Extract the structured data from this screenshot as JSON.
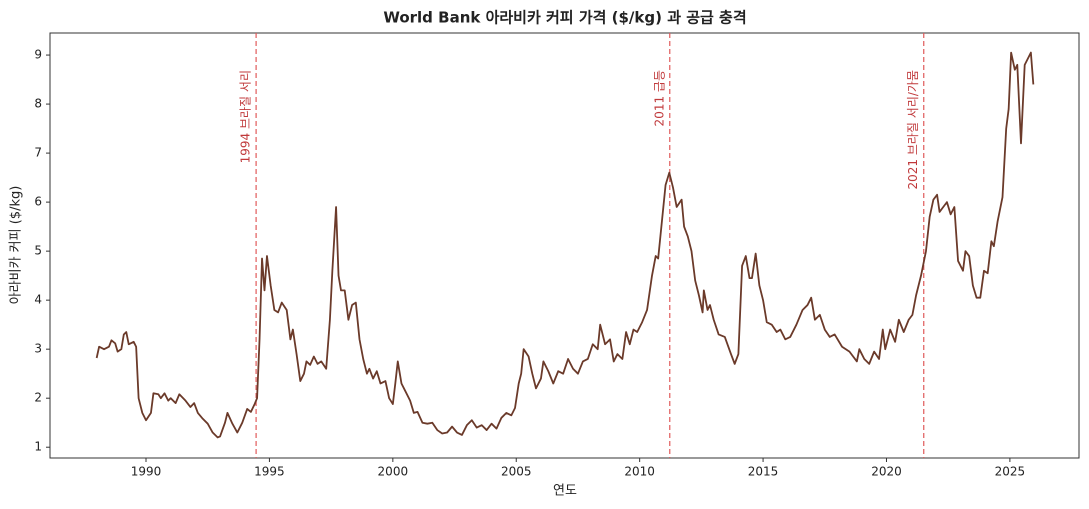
{
  "chart_data": {
    "type": "line",
    "title": "World Bank 아라비카 커피 가격 ($/kg) 과 공급 충격",
    "x_label": "연도",
    "y_label": "아라비카 커피 ($/kg)",
    "xlim": [
      1986.11,
      2027.8
    ],
    "ylim": [
      0.78,
      9.45
    ],
    "xticks": [
      1990,
      1995,
      2000,
      2005,
      2010,
      2015,
      2020,
      2025
    ],
    "yticks": [
      1,
      2,
      3,
      4,
      5,
      6,
      7,
      8,
      9
    ],
    "grid": false,
    "annotations": [
      {
        "x": 1994.46,
        "text": "1994 브라질 서리"
      },
      {
        "x": 2011.22,
        "text": "2011 급등"
      },
      {
        "x": 2021.51,
        "text": "2021 브라질 서리/가뭄"
      }
    ],
    "annotation_color": "#e05a5a",
    "series": [
      {
        "name": "아라비카 커피",
        "color": "#6b3a2a",
        "x": [
          1988.0,
          1988.1,
          1988.3,
          1988.5,
          1988.6,
          1988.75,
          1988.85,
          1989.0,
          1989.1,
          1989.2,
          1989.3,
          1989.5,
          1989.6,
          1989.7,
          1989.85,
          1990.0,
          1990.2,
          1990.3,
          1990.5,
          1990.6,
          1990.75,
          1990.9,
          1991.0,
          1991.2,
          1991.35,
          1991.6,
          1991.8,
          1991.95,
          1992.1,
          1992.3,
          1992.5,
          1992.7,
          1992.9,
          1993.0,
          1993.2,
          1993.3,
          1993.5,
          1993.7,
          1993.9,
          1994.1,
          1994.25,
          1994.4,
          1994.5,
          1994.6,
          1994.7,
          1994.8,
          1994.9,
          1995.05,
          1995.2,
          1995.35,
          1995.5,
          1995.7,
          1995.85,
          1995.95,
          1996.1,
          1996.25,
          1996.4,
          1996.5,
          1996.65,
          1996.8,
          1996.95,
          1997.1,
          1997.3,
          1997.45,
          1997.55,
          1997.7,
          1997.8,
          1997.9,
          1998.05,
          1998.2,
          1998.35,
          1998.5,
          1998.65,
          1998.8,
          1998.95,
          1999.05,
          1999.2,
          1999.35,
          1999.5,
          1999.7,
          1999.85,
          2000.0,
          2000.1,
          2000.2,
          2000.35,
          2000.5,
          2000.7,
          2000.85,
          2001.0,
          2001.2,
          2001.4,
          2001.6,
          2001.8,
          2002.0,
          2002.2,
          2002.4,
          2002.6,
          2002.8,
          2003.0,
          2003.2,
          2003.4,
          2003.6,
          2003.8,
          2004.0,
          2004.2,
          2004.4,
          2004.6,
          2004.8,
          2004.95,
          2005.1,
          2005.2,
          2005.3,
          2005.5,
          2005.65,
          2005.8,
          2006.0,
          2006.1,
          2006.3,
          2006.5,
          2006.7,
          2006.9,
          2007.1,
          2007.3,
          2007.5,
          2007.7,
          2007.9,
          2008.1,
          2008.3,
          2008.4,
          2008.6,
          2008.8,
          2008.95,
          2009.1,
          2009.3,
          2009.45,
          2009.6,
          2009.75,
          2009.9,
          2010.1,
          2010.3,
          2010.5,
          2010.65,
          2010.75,
          2010.9,
          2011.05,
          2011.2,
          2011.35,
          2011.5,
          2011.7,
          2011.8,
          2011.95,
          2012.1,
          2012.25,
          2012.4,
          2012.55,
          2012.6,
          2012.75,
          2012.85,
          2013.0,
          2013.2,
          2013.45,
          2013.7,
          2013.85,
          2014.0,
          2014.15,
          2014.3,
          2014.45,
          2014.55,
          2014.7,
          2014.85,
          2015.0,
          2015.15,
          2015.35,
          2015.55,
          2015.7,
          2015.9,
          2016.1,
          2016.35,
          2016.6,
          2016.8,
          2016.95,
          2017.1,
          2017.3,
          2017.5,
          2017.7,
          2017.9,
          2018.2,
          2018.5,
          2018.8,
          2018.9,
          2019.1,
          2019.3,
          2019.5,
          2019.7,
          2019.85,
          2019.95,
          2020.15,
          2020.35,
          2020.5,
          2020.7,
          2020.9,
          2021.05,
          2021.2,
          2021.4,
          2021.6,
          2021.75,
          2021.9,
          2022.05,
          2022.15,
          2022.3,
          2022.45,
          2022.6,
          2022.75,
          2022.9,
          2023.1,
          2023.2,
          2023.35,
          2023.5,
          2023.65,
          2023.8,
          2023.95,
          2024.1,
          2024.25,
          2024.35,
          2024.5,
          2024.7,
          2024.85,
          2024.95,
          2025.05,
          2025.2,
          2025.3,
          2025.45,
          2025.6,
          2025.85,
          2025.95
        ],
        "values": [
          2.82,
          3.05,
          3.0,
          3.05,
          3.18,
          3.12,
          2.95,
          3.0,
          3.3,
          3.35,
          3.1,
          3.15,
          3.05,
          2.0,
          1.7,
          1.55,
          1.7,
          2.1,
          2.08,
          2.0,
          2.1,
          1.95,
          2.0,
          1.9,
          2.08,
          1.95,
          1.82,
          1.9,
          1.7,
          1.58,
          1.48,
          1.3,
          1.2,
          1.22,
          1.5,
          1.7,
          1.48,
          1.3,
          1.5,
          1.78,
          1.72,
          1.88,
          2.0,
          3.2,
          4.85,
          4.2,
          4.9,
          4.3,
          3.8,
          3.75,
          3.95,
          3.8,
          3.2,
          3.4,
          2.9,
          2.35,
          2.5,
          2.75,
          2.68,
          2.85,
          2.7,
          2.75,
          2.6,
          3.6,
          4.6,
          5.9,
          4.5,
          4.2,
          4.2,
          3.6,
          3.9,
          3.95,
          3.2,
          2.8,
          2.5,
          2.6,
          2.4,
          2.55,
          2.3,
          2.35,
          2.0,
          1.88,
          2.3,
          2.75,
          2.3,
          2.15,
          1.95,
          1.7,
          1.72,
          1.5,
          1.48,
          1.5,
          1.35,
          1.28,
          1.3,
          1.42,
          1.3,
          1.25,
          1.45,
          1.55,
          1.4,
          1.45,
          1.35,
          1.48,
          1.38,
          1.6,
          1.7,
          1.65,
          1.8,
          2.3,
          2.5,
          3.0,
          2.85,
          2.5,
          2.2,
          2.4,
          2.75,
          2.55,
          2.3,
          2.55,
          2.5,
          2.8,
          2.6,
          2.5,
          2.75,
          2.8,
          3.1,
          3.0,
          3.5,
          3.1,
          3.2,
          2.75,
          2.9,
          2.8,
          3.35,
          3.1,
          3.4,
          3.35,
          3.55,
          3.8,
          4.5,
          4.9,
          4.85,
          5.6,
          6.35,
          6.6,
          6.3,
          5.9,
          6.05,
          5.5,
          5.3,
          5.0,
          4.4,
          4.1,
          3.75,
          4.2,
          3.8,
          3.9,
          3.6,
          3.3,
          3.25,
          2.9,
          2.7,
          2.9,
          4.7,
          4.9,
          4.45,
          4.45,
          4.95,
          4.3,
          4.0,
          3.55,
          3.5,
          3.35,
          3.4,
          3.2,
          3.25,
          3.5,
          3.8,
          3.9,
          4.05,
          3.6,
          3.7,
          3.4,
          3.25,
          3.3,
          3.05,
          2.95,
          2.75,
          3.0,
          2.8,
          2.7,
          2.95,
          2.8,
          3.4,
          3.0,
          3.4,
          3.15,
          3.6,
          3.35,
          3.6,
          3.7,
          4.1,
          4.5,
          5.0,
          5.7,
          6.05,
          6.15,
          5.8,
          5.9,
          6.0,
          5.75,
          5.9,
          4.8,
          4.6,
          5.0,
          4.9,
          4.3,
          4.05,
          4.05,
          4.6,
          4.55,
          5.2,
          5.1,
          5.6,
          6.1,
          7.5,
          7.9,
          9.05,
          8.7,
          8.8,
          7.2,
          8.8,
          9.05,
          8.4
        ]
      }
    ]
  }
}
